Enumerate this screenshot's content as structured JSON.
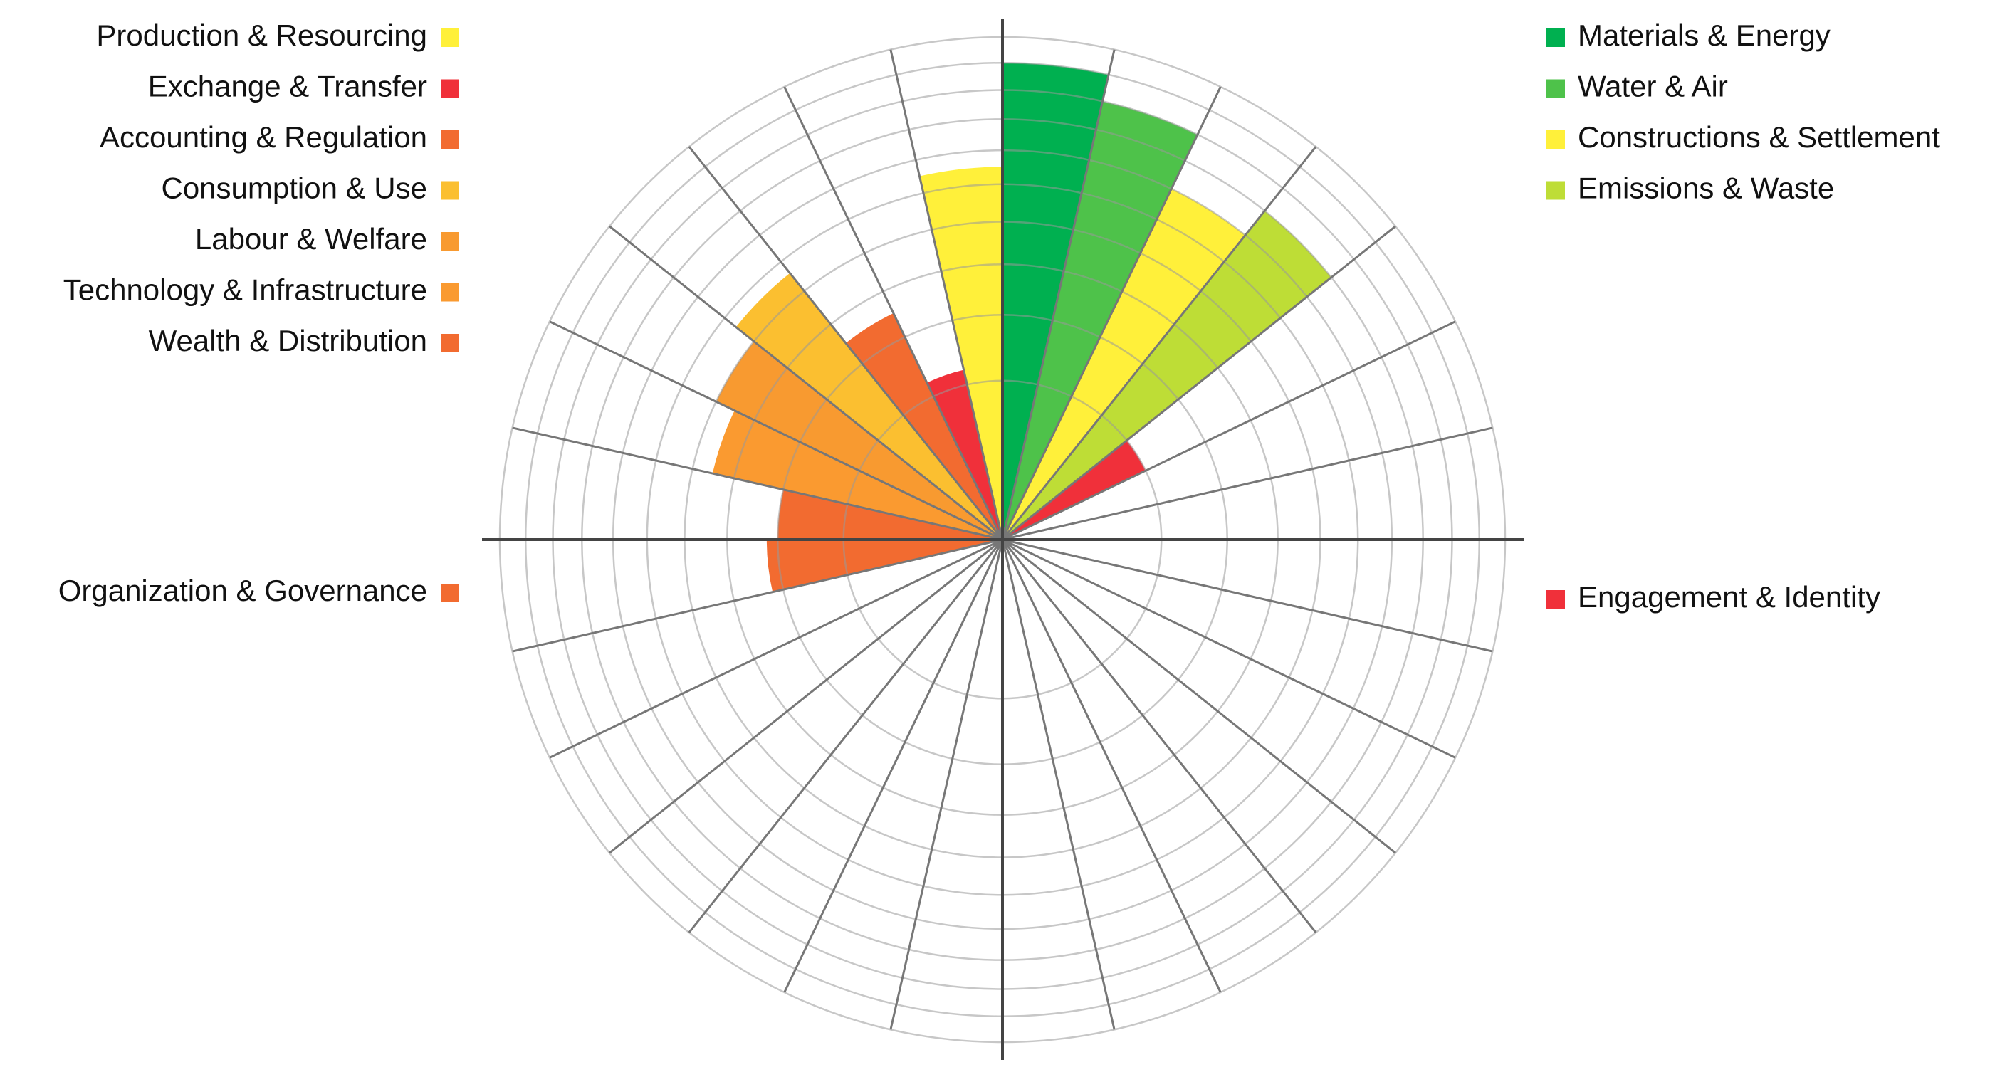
{
  "chart_data": {
    "type": "polar-area",
    "radial_scale": "sqrt",
    "categories": [
      "Materials & Energy",
      "Water & Air",
      "Constructions & Settlement",
      "Emissions & Waste",
      "Engagement & Identity",
      null,
      null,
      null,
      null,
      null,
      null,
      null,
      null,
      null,
      null,
      null,
      null,
      null,
      null,
      null,
      "Organization & Governance",
      "Wealth & Distribution",
      "Technology & Infrastructure",
      "Labour & Welfare",
      "Consumption & Use",
      "Accounting & Regulation",
      "Exchange & Transfer",
      "Production & Resourcing"
    ],
    "values": [
      9,
      8,
      6,
      7,
      1,
      null,
      null,
      null,
      null,
      null,
      null,
      null,
      null,
      null,
      null,
      null,
      null,
      null,
      null,
      null,
      2.2,
      2,
      3.5,
      4,
      4.6,
      2.5,
      1.2,
      5.5
    ],
    "colors": [
      "#00b050",
      "#4ec24a",
      "#fff03a",
      "#bedd36",
      "#f0303a",
      null,
      null,
      null,
      null,
      null,
      null,
      null,
      null,
      null,
      null,
      null,
      null,
      null,
      null,
      null,
      "#f26b30",
      "#f26b30",
      "#fa9a30",
      "#f89a30",
      "#fbbf30",
      "#f26b30",
      "#f0303a",
      "#fff03a"
    ],
    "ylim": [
      0,
      10
    ],
    "yticks": [
      1,
      2,
      3,
      4,
      5,
      6,
      7,
      8,
      9,
      10
    ],
    "grid": true
  }
}
